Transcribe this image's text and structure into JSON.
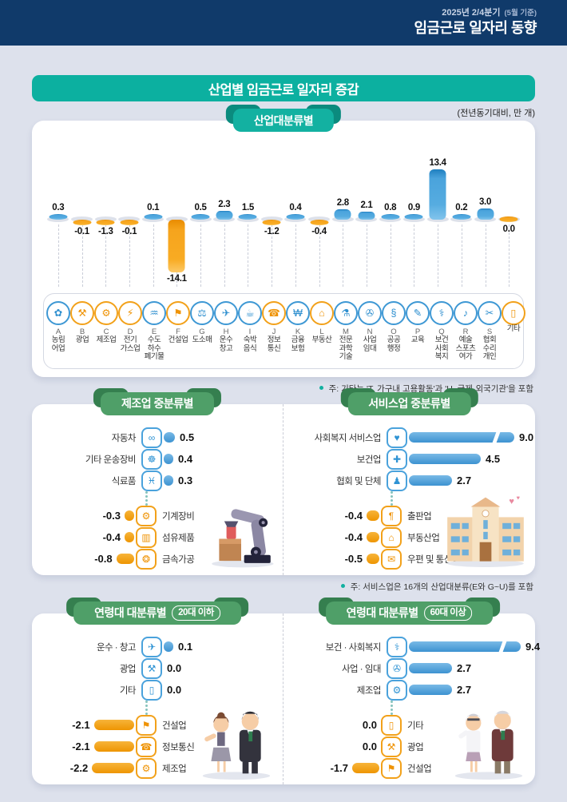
{
  "header": {
    "period": "2025년 2/4분기",
    "period_note": "(5월 기준)",
    "title": "임금근로 일자리 동향"
  },
  "banner": {
    "title": "산업별 임금근로 일자리 증감",
    "unit_note": "(전년동기대비, 만 개)"
  },
  "colors": {
    "positive": "#3e98d4",
    "negative": "#f39c0e",
    "teal_accent": "#13b1a1",
    "green_accent": "#4f9f68",
    "header_navy": "#103a6a"
  },
  "chart_data": [
    {
      "type": "bar",
      "id": "industry",
      "title": "산업대분류별",
      "unit": "만 개, 전년동기대비",
      "note": "주: 기타는 'T. 가구내 고용활동'과 'U. 국제·외국기관'을 포함",
      "bars": [
        {
          "letter": "A",
          "label": "농림\n어업",
          "value": 0.3,
          "icon": "✿",
          "icon_name": "agriculture-icon"
        },
        {
          "letter": "B",
          "label": "광업",
          "value": -0.1,
          "icon": "⚒",
          "icon_name": "mining-icon"
        },
        {
          "letter": "C",
          "label": "제조업",
          "value": -1.3,
          "icon": "⚙",
          "icon_name": "manufacturing-icon"
        },
        {
          "letter": "D",
          "label": "전기\n가스업",
          "value": -0.1,
          "icon": "⚡",
          "icon_name": "electricity-gas-icon"
        },
        {
          "letter": "E",
          "label": "수도\n하수\n폐기물",
          "value": 0.1,
          "icon": "♒",
          "icon_name": "water-sewage-icon"
        },
        {
          "letter": "F",
          "label": "건설업",
          "value": -14.1,
          "icon": "⚑",
          "icon_name": "construction-icon"
        },
        {
          "letter": "G",
          "label": "도소매",
          "value": 0.5,
          "icon": "⚖",
          "icon_name": "retail-icon"
        },
        {
          "letter": "H",
          "label": "운수\n창고",
          "value": 2.3,
          "icon": "✈",
          "icon_name": "transport-warehouse-icon"
        },
        {
          "letter": "I",
          "label": "숙박\n음식",
          "value": 1.5,
          "icon": "☕",
          "icon_name": "lodging-food-icon"
        },
        {
          "letter": "J",
          "label": "정보\n통신",
          "value": -1.2,
          "icon": "☎",
          "icon_name": "ict-icon"
        },
        {
          "letter": "K",
          "label": "금융\n보험",
          "value": 0.4,
          "icon": "₩",
          "icon_name": "finance-insurance-icon"
        },
        {
          "letter": "L",
          "label": "부동산",
          "value": -0.4,
          "icon": "⌂",
          "icon_name": "real-estate-icon"
        },
        {
          "letter": "M",
          "label": "전문\n과학\n기술",
          "value": 2.8,
          "icon": "⚗",
          "icon_name": "science-tech-icon"
        },
        {
          "letter": "N",
          "label": "사업\n임대",
          "value": 2.1,
          "icon": "✇",
          "icon_name": "business-rental-icon"
        },
        {
          "letter": "O",
          "label": "공공\n행정",
          "value": 0.8,
          "icon": "§",
          "icon_name": "public-admin-icon"
        },
        {
          "letter": "P",
          "label": "교육",
          "value": 0.9,
          "icon": "✎",
          "icon_name": "education-icon"
        },
        {
          "letter": "Q",
          "label": "보건\n사회\n복지",
          "value": 13.4,
          "icon": "⚕",
          "icon_name": "health-welfare-icon"
        },
        {
          "letter": "R",
          "label": "예술\n스포츠\n여가",
          "value": 0.2,
          "icon": "♪",
          "icon_name": "arts-sports-icon"
        },
        {
          "letter": "S",
          "label": "협회\n수리\n개인",
          "value": 3.0,
          "icon": "✂",
          "icon_name": "association-repair-icon"
        },
        {
          "letter": "",
          "label": "기타",
          "value": 0.0,
          "icon": "▯",
          "icon_name": "etc-icon"
        }
      ]
    },
    {
      "type": "bar",
      "id": "manufacturing_mid",
      "title": "제조업 중분류별",
      "items": [
        {
          "label": "자동차",
          "value": 0.5,
          "icon": "∞",
          "icon_name": "car-icon",
          "group": "positive"
        },
        {
          "label": "기타 운송장비",
          "value": 0.4,
          "icon": "☸",
          "icon_name": "ship-wheel-icon",
          "group": "positive"
        },
        {
          "label": "식료품",
          "value": 0.3,
          "icon": "♓",
          "icon_name": "food-products-icon",
          "group": "positive"
        },
        {
          "label": "기계장비",
          "value": -0.3,
          "icon": "⚙",
          "icon_name": "machinery-icon",
          "group": "negative"
        },
        {
          "label": "섬유제품",
          "value": -0.4,
          "icon": "▥",
          "icon_name": "textile-icon",
          "group": "negative"
        },
        {
          "label": "금속가공",
          "value": -0.8,
          "icon": "❂",
          "icon_name": "metal-processing-icon",
          "group": "negative"
        }
      ]
    },
    {
      "type": "bar",
      "id": "services_mid",
      "title": "서비스업 중분류별",
      "note": "주: 서비스업은 16개의 산업대분류(E와 G~U)를 포함",
      "items": [
        {
          "label": "사회복지 서비스업",
          "value": 9.0,
          "icon": "♥",
          "icon_name": "social-welfare-icon",
          "group": "positive",
          "broken_bar": true
        },
        {
          "label": "보건업",
          "value": 4.5,
          "icon": "✚",
          "icon_name": "health-cross-icon",
          "group": "positive"
        },
        {
          "label": "협회 및 단체",
          "value": 2.7,
          "icon": "♟",
          "icon_name": "association-people-icon",
          "group": "positive"
        },
        {
          "label": "출판업",
          "value": -0.4,
          "icon": "¶",
          "icon_name": "publishing-icon",
          "group": "negative"
        },
        {
          "label": "부동산업",
          "value": -0.4,
          "icon": "⌂",
          "icon_name": "real-estate-icon",
          "group": "negative"
        },
        {
          "label": "우편 및 통신업",
          "value": -0.5,
          "icon": "✉",
          "icon_name": "mail-telecom-icon",
          "group": "negative"
        }
      ]
    },
    {
      "type": "bar",
      "id": "age_under_20s",
      "title": "연령대 대분류별",
      "badge": "20대 이하",
      "items": [
        {
          "label": "운수 · 창고",
          "value": 0.1,
          "icon": "✈",
          "icon_name": "transport-warehouse-icon",
          "group": "positive"
        },
        {
          "label": "광업",
          "value": 0.0,
          "icon": "⚒",
          "icon_name": "mining-icon",
          "group": "positive"
        },
        {
          "label": "기타",
          "value": 0.0,
          "icon": "▯",
          "icon_name": "etc-icon",
          "group": "positive"
        },
        {
          "label": "건설업",
          "value": -2.1,
          "icon": "⚑",
          "icon_name": "construction-icon",
          "group": "negative"
        },
        {
          "label": "정보통신",
          "value": -2.1,
          "icon": "☎",
          "icon_name": "ict-icon",
          "group": "negative"
        },
        {
          "label": "제조업",
          "value": -2.2,
          "icon": "⚙",
          "icon_name": "manufacturing-icon",
          "group": "negative"
        }
      ]
    },
    {
      "type": "bar",
      "id": "age_over_60s",
      "title": "연령대 대분류별",
      "badge": "60대 이상",
      "items": [
        {
          "label": "보건 · 사회복지",
          "value": 9.4,
          "icon": "⚕",
          "icon_name": "health-welfare-icon",
          "group": "positive",
          "broken_bar": true
        },
        {
          "label": "사업 · 임대",
          "value": 2.7,
          "icon": "✇",
          "icon_name": "business-rental-icon",
          "group": "positive"
        },
        {
          "label": "제조업",
          "value": 2.7,
          "icon": "⚙",
          "icon_name": "manufacturing-icon",
          "group": "positive"
        },
        {
          "label": "기타",
          "value": 0.0,
          "icon": "▯",
          "icon_name": "etc-icon",
          "group": "negative"
        },
        {
          "label": "광업",
          "value": 0.0,
          "icon": "⚒",
          "icon_name": "mining-icon",
          "group": "negative"
        },
        {
          "label": "건설업",
          "value": -1.7,
          "icon": "⚑",
          "icon_name": "construction-icon",
          "group": "negative"
        }
      ]
    }
  ]
}
